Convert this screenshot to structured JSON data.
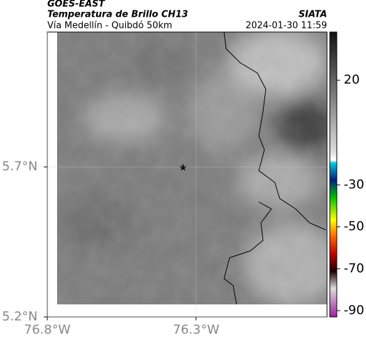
{
  "header": {
    "title": "GOES-EAST",
    "subtitle": "Temperatura de Brillo CH13",
    "location": "Vía Medellín - Quibdó 50km",
    "source": "SIATA",
    "datetime": "2024-01-30 11:59"
  },
  "map": {
    "xlim": [
      -76.8,
      -75.86
    ],
    "ylim": [
      5.2,
      6.15
    ],
    "xticks": [
      {
        "value": -76.8,
        "label": "76.8°W"
      },
      {
        "value": -76.3,
        "label": "76.3°W"
      }
    ],
    "yticks": [
      {
        "value": 5.7,
        "label": "5.7°N"
      },
      {
        "value": 5.2,
        "label": "5.2°N"
      }
    ]
  },
  "colorbar": {
    "lim": [
      -93,
      43
    ],
    "ticks": [
      20,
      -30,
      -50,
      -70,
      -90
    ]
  }
}
